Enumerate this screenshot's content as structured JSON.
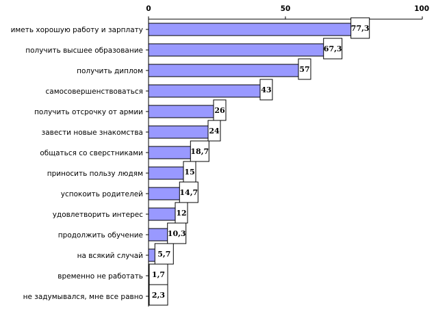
{
  "chart_data": {
    "type": "bar",
    "orientation": "horizontal",
    "categories": [
      "иметь хорошую работу и зарплату",
      "получить высшее образование",
      "получить диплом",
      "самосовершенствоваться",
      "получить отсрочку от армии",
      "завести новые знакомства",
      "общаться со сверстниками",
      "приносить пользу людям",
      "успокоить родителей",
      "удовлетворить интерес",
      "продолжить обучение",
      "на всякий случай",
      "временно не работать",
      "не задумывался, мне все равно"
    ],
    "values": [
      77.3,
      67.3,
      57,
      43,
      26,
      24,
      18.7,
      15,
      14.7,
      12,
      10.3,
      5.7,
      1.7,
      2.3
    ],
    "value_labels": [
      "77,3",
      "67,3",
      "57",
      "43",
      "26",
      "24",
      "18,7",
      "15",
      "14,7",
      "12",
      "10,3",
      "5,7",
      "1,7",
      "2,3"
    ],
    "xlim": [
      0,
      100
    ],
    "x_ticks": [
      0,
      50,
      100
    ],
    "x_tick_labels": [
      "0",
      "50",
      "100"
    ],
    "axis_position": "top",
    "grid": false,
    "legend": "none",
    "bar_color": "#9999ff",
    "bar_edge_color": "#000000",
    "label_box_color": "#ffffff"
  }
}
